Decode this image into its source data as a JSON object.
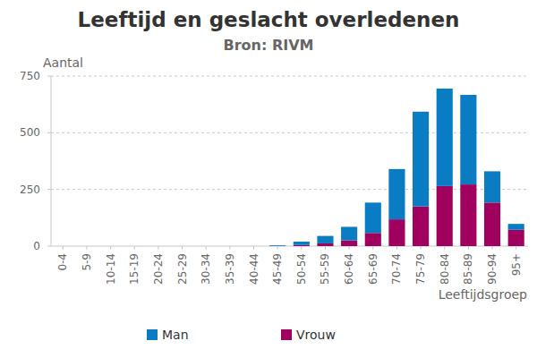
{
  "chart_data": {
    "type": "bar",
    "title": "Leeftijd en geslacht overledenen",
    "subtitle": "Bron: RIVM",
    "y_label": "Aantal",
    "x_label": "Leeftijdsgroep",
    "categories": [
      "0-4",
      "5-9",
      "10-14",
      "15-19",
      "20-24",
      "25-29",
      "30-34",
      "35-39",
      "40-44",
      "45-49",
      "50-54",
      "55-59",
      "60-64",
      "65-69",
      "70-74",
      "75-79",
      "80-84",
      "85-89",
      "90-94",
      "95+"
    ],
    "series": [
      {
        "name": "Man",
        "color": "#0a7cc4",
        "values": [
          0,
          0,
          0,
          0,
          0,
          0,
          0,
          0,
          0,
          3,
          15,
          33,
          60,
          134,
          222,
          418,
          430,
          395,
          138,
          26
        ]
      },
      {
        "name": "Vrouw",
        "color": "#a0005e",
        "values": [
          0,
          0,
          0,
          0,
          0,
          0,
          0,
          0,
          0,
          1,
          5,
          12,
          25,
          58,
          118,
          175,
          265,
          272,
          192,
          72
        ]
      }
    ],
    "stacked": true,
    "ylim": [
      0,
      750
    ],
    "yticks": [
      0,
      250,
      500,
      750
    ],
    "grid": true,
    "legend": "bottom"
  }
}
